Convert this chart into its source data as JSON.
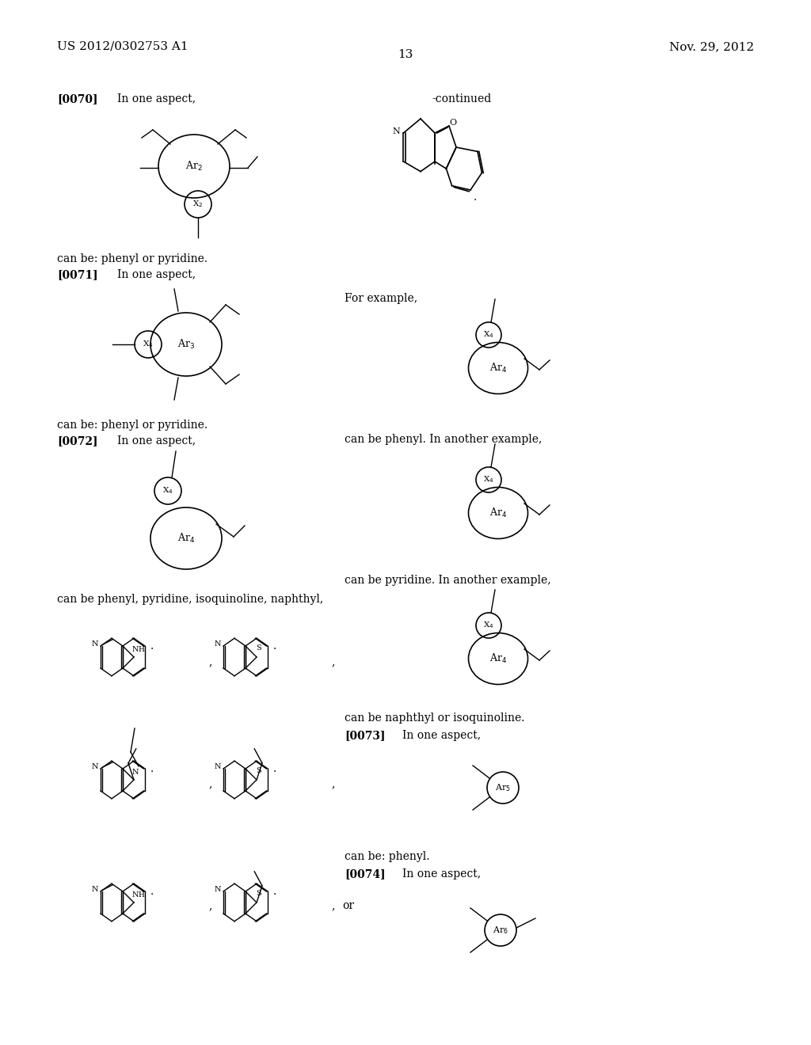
{
  "page_number": "13",
  "patent_number": "US 2012/0302753 A1",
  "patent_date": "Nov. 29, 2012",
  "background_color": "#ffffff",
  "text_color": "#000000"
}
